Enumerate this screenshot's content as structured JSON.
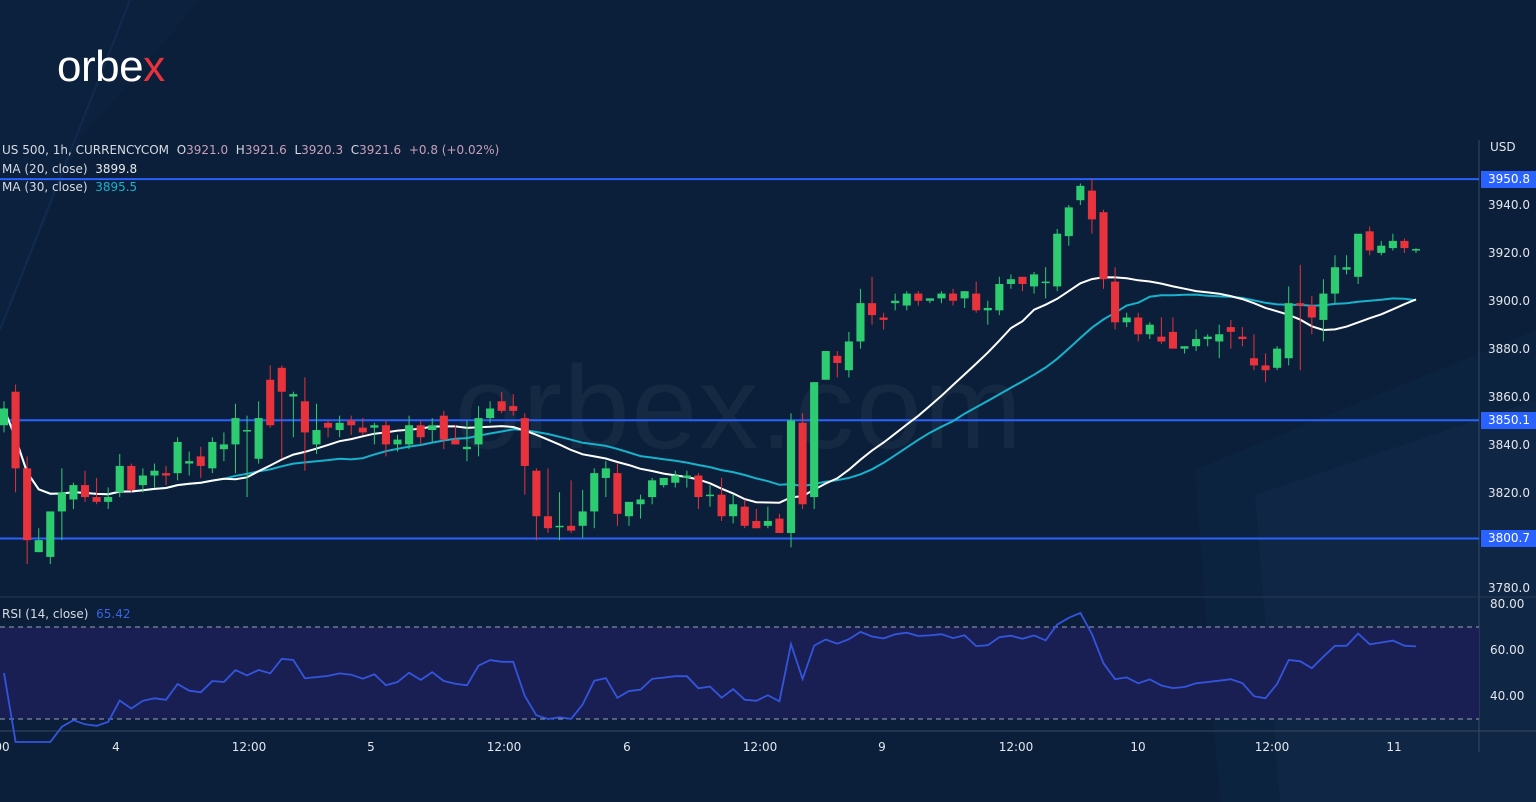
{
  "brand": {
    "logo_text_main": "orbe",
    "logo_text_accent": "x",
    "watermark": "orbex.com",
    "accent_color": "#e8323c"
  },
  "legend": {
    "symbol": "US 500, 1h, CURRENCYCOM",
    "open_label": "O",
    "open": "3921.0",
    "high_label": "H",
    "high": "3921.6",
    "low_label": "L",
    "low": "3920.3",
    "close_label": "C",
    "close": "3921.6",
    "change": "+0.8 (+0.02%)",
    "ma20_label": "MA (20, close)",
    "ma20_value": "3899.8",
    "ma30_label": "MA (30, close)",
    "ma30_value": "3895.5",
    "rsi_label": "RSI (14, close)",
    "rsi_value": "65.42"
  },
  "price_axis": {
    "currency": "USD",
    "ticks": [
      "3940.0",
      "3920.0",
      "3900.0",
      "3880.0",
      "3860.0",
      "3840.0",
      "3820.0",
      "3780.0"
    ],
    "highlighted_levels": [
      "3950.8",
      "3850.1",
      "3800.7"
    ]
  },
  "rsi_axis": {
    "ticks": [
      "80.00",
      "60.00",
      "40.00"
    ]
  },
  "time_axis": {
    "labels": [
      "00",
      "4",
      "12:00",
      "5",
      "12:00",
      "6",
      "12:00",
      "9",
      "12:00",
      "10",
      "12:00",
      "11"
    ]
  },
  "colors": {
    "background": "#0b1f3a",
    "bull": "#2ecc71",
    "bear": "#e8323c",
    "ma20": "#ffffff",
    "ma30": "#17b2cc",
    "level_line": "#2962ff",
    "rsi_line": "#3355dd",
    "rsi_band": "#1b1f55"
  },
  "chart_data": [
    {
      "type": "candlestick",
      "title": "US 500, 1h, CURRENCYCOM",
      "ylabel": "USD",
      "ylim": [
        3775,
        3960
      ],
      "x_tick_labels": [
        "00",
        "4",
        "12:00",
        "5",
        "12:00",
        "6",
        "12:00",
        "9",
        "12:00",
        "10",
        "12:00",
        "11"
      ],
      "horizontal_levels": [
        3950.8,
        3850.1,
        3800.7
      ],
      "series": [
        {
          "name": "OHLC",
          "ohlc": [
            [
              3848,
              3858,
              3845,
              3855
            ],
            [
              3862,
              3865,
              3820,
              3830
            ],
            [
              3830,
              3835,
              3790,
              3800
            ],
            [
              3795,
              3805,
              3795,
              3800
            ],
            [
              3793,
              3805,
              3790,
              3812
            ],
            [
              3812,
              3830,
              3800,
              3820
            ],
            [
              3817,
              3824,
              3813,
              3823
            ],
            [
              3823,
              3829,
              3816,
              3818
            ],
            [
              3818,
              3826,
              3815,
              3816
            ],
            [
              3816,
              3822,
              3813,
              3818
            ],
            [
              3820,
              3836,
              3818,
              3831
            ],
            [
              3831,
              3832,
              3820,
              3821
            ],
            [
              3823,
              3830,
              3820,
              3827
            ],
            [
              3827,
              3832,
              3822,
              3829
            ],
            [
              3828,
              3831,
              3823,
              3827
            ],
            [
              3828,
              3843,
              3825,
              3841
            ],
            [
              3832,
              3837,
              3827,
              3833
            ],
            [
              3835,
              3839,
              3826,
              3831
            ],
            [
              3830,
              3843,
              3828,
              3841
            ],
            [
              3838,
              3845,
              3833,
              3840
            ],
            [
              3840,
              3857,
              3828,
              3851
            ],
            [
              3846,
              3852,
              3818,
              3846
            ],
            [
              3834,
              3858,
              3832,
              3851
            ],
            [
              3867,
              3873,
              3847,
              3848
            ],
            [
              3872,
              3873,
              3834,
              3862
            ],
            [
              3860,
              3862,
              3843,
              3861
            ],
            [
              3858,
              3868,
              3829,
              3845
            ],
            [
              3840,
              3857,
              3836,
              3846
            ],
            [
              3849,
              3850,
              3843,
              3847
            ],
            [
              3846,
              3852,
              3843,
              3849
            ],
            [
              3850,
              3852,
              3844,
              3848
            ],
            [
              3847,
              3851,
              3844,
              3845
            ],
            [
              3847,
              3849,
              3840,
              3848
            ],
            [
              3848,
              3850,
              3835,
              3840
            ],
            [
              3840,
              3844,
              3837,
              3842
            ],
            [
              3840,
              3852,
              3838,
              3848
            ],
            [
              3848,
              3850,
              3840,
              3843
            ],
            [
              3846,
              3851,
              3841,
              3848
            ],
            [
              3852,
              3854,
              3838,
              3842
            ],
            [
              3842,
              3848,
              3840,
              3840
            ],
            [
              3838,
              3850,
              3833,
              3839
            ],
            [
              3840,
              3856,
              3835,
              3851
            ],
            [
              3851,
              3858,
              3849,
              3855
            ],
            [
              3858,
              3862,
              3853,
              3854
            ],
            [
              3856,
              3861,
              3852,
              3854
            ],
            [
              3851,
              3853,
              3819,
              3831
            ],
            [
              3829,
              3830,
              3800,
              3810
            ],
            [
              3810,
              3830,
              3803,
              3805
            ],
            [
              3806,
              3820,
              3800,
              3806
            ],
            [
              3806,
              3825,
              3803,
              3804
            ],
            [
              3806,
              3821,
              3801,
              3812
            ],
            [
              3812,
              3830,
              3805,
              3828
            ],
            [
              3826,
              3833,
              3818,
              3830
            ],
            [
              3828,
              3832,
              3806,
              3811
            ],
            [
              3810,
              3814,
              3806,
              3816
            ],
            [
              3815,
              3819,
              3809,
              3817
            ],
            [
              3818,
              3826,
              3815,
              3825
            ],
            [
              3823,
              3824,
              3822,
              3826
            ],
            [
              3824,
              3829,
              3822,
              3827
            ],
            [
              3826,
              3829,
              3822,
              3827
            ],
            [
              3827,
              3828,
              3813,
              3818
            ],
            [
              3819,
              3823,
              3814,
              3819
            ],
            [
              3819,
              3826,
              3808,
              3810
            ],
            [
              3810,
              3819,
              3807,
              3815
            ],
            [
              3814,
              3817,
              3805,
              3806
            ],
            [
              3808,
              3813,
              3805,
              3805
            ],
            [
              3806,
              3814,
              3805,
              3808
            ],
            [
              3809,
              3811,
              3803,
              3803
            ],
            [
              3803,
              3853,
              3797,
              3850
            ],
            [
              3849,
              3853,
              3813,
              3815
            ],
            [
              3818,
              3866,
              3813,
              3866
            ],
            [
              3867,
              3872,
              3867,
              3879
            ],
            [
              3877,
              3879,
              3868,
              3874
            ],
            [
              3871,
              3887,
              3868,
              3883
            ],
            [
              3883,
              3905,
              3880,
              3899
            ],
            [
              3899,
              3910,
              3890,
              3894
            ],
            [
              3893,
              3895,
              3888,
              3892
            ],
            [
              3899,
              3903,
              3896,
              3900
            ],
            [
              3898,
              3904,
              3896,
              3903
            ],
            [
              3903,
              3904,
              3898,
              3900
            ],
            [
              3900,
              3901,
              3899,
              3901
            ],
            [
              3901,
              3904,
              3899,
              3903
            ],
            [
              3903,
              3905,
              3898,
              3900
            ],
            [
              3901,
              3904,
              3897,
              3904
            ],
            [
              3903,
              3908,
              3895,
              3896
            ],
            [
              3896,
              3900,
              3890,
              3897
            ],
            [
              3896,
              3910,
              3894,
              3907
            ],
            [
              3907,
              3911,
              3905,
              3909
            ],
            [
              3910,
              3909,
              3904,
              3907
            ],
            [
              3906,
              3912,
              3903,
              3911
            ],
            [
              3908,
              3914,
              3901,
              3908
            ],
            [
              3906,
              3930,
              3904,
              3928
            ],
            [
              3927,
              3940,
              3923,
              3939
            ],
            [
              3942,
              3949,
              3940,
              3948
            ],
            [
              3946,
              3951,
              3928,
              3934
            ],
            [
              3937,
              3938,
              3905,
              3909
            ],
            [
              3908,
              3914,
              3888,
              3891
            ],
            [
              3891,
              3895,
              3889,
              3893
            ],
            [
              3893,
              3895,
              3883,
              3886
            ],
            [
              3886,
              3891,
              3884,
              3890
            ],
            [
              3885,
              3893,
              3882,
              3883
            ],
            [
              3887,
              3893,
              3880,
              3880
            ],
            [
              3880,
              3881,
              3878,
              3881
            ],
            [
              3881,
              3888,
              3879,
              3884
            ],
            [
              3884,
              3886,
              3881,
              3885
            ],
            [
              3883,
              3890,
              3876,
              3886
            ],
            [
              3889,
              3892,
              3880,
              3887
            ],
            [
              3885,
              3889,
              3881,
              3884
            ],
            [
              3876,
              3886,
              3871,
              3873
            ],
            [
              3873,
              3878,
              3866,
              3871
            ],
            [
              3872,
              3881,
              3871,
              3880
            ],
            [
              3876,
              3906,
              3873,
              3899
            ],
            [
              3899,
              3915,
              3871,
              3898
            ],
            [
              3898,
              3902,
              3886,
              3893
            ],
            [
              3892,
              3909,
              3883,
              3903
            ],
            [
              3903,
              3919,
              3899,
              3914
            ],
            [
              3913,
              3919,
              3911,
              3914
            ],
            [
              3910,
              3925,
              3907,
              3928
            ],
            [
              3929,
              3931,
              3919,
              3921
            ],
            [
              3920,
              3925,
              3919,
              3923
            ],
            [
              3922,
              3928,
              3921,
              3925
            ],
            [
              3925,
              3926,
              3920,
              3922
            ],
            [
              3921,
              3922,
              3920,
              3921.6
            ]
          ]
        },
        {
          "name": "MA (20, close)",
          "last": 3899.8
        },
        {
          "name": "MA (30, close)",
          "last": 3895.5
        }
      ]
    },
    {
      "type": "line",
      "title": "RSI (14, close)",
      "ylim": [
        25,
        85
      ],
      "bands": [
        30,
        70
      ],
      "series": [
        {
          "name": "RSI (14, close)",
          "last": 65.42
        }
      ]
    }
  ]
}
